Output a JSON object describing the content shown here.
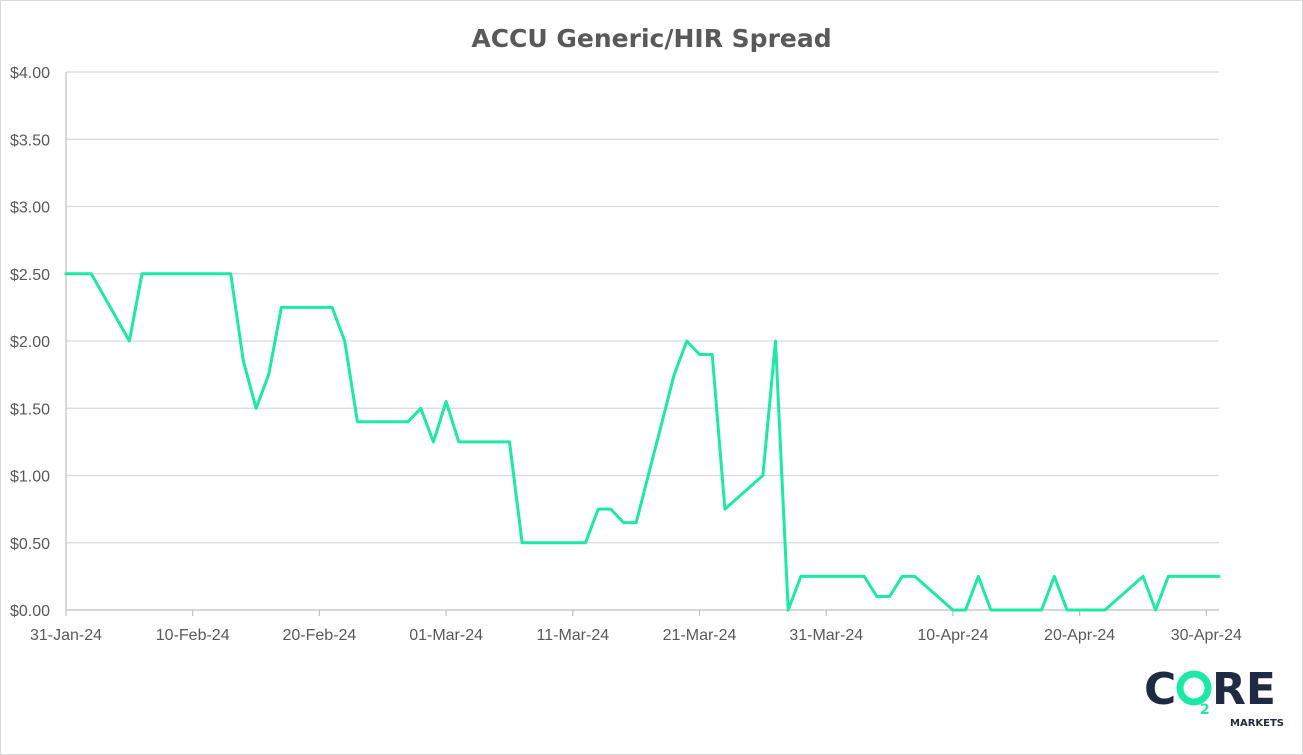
{
  "chart_data": {
    "type": "line",
    "title": "ACCU Generic/HIR Spread",
    "xlabel": "",
    "ylabel": "",
    "ylim": [
      0,
      4
    ],
    "yticks": [
      "$0.00",
      "$0.50",
      "$1.00",
      "$1.50",
      "$2.00",
      "$2.50",
      "$3.00",
      "$3.50",
      "$4.00"
    ],
    "xlim": [
      "2024-01-31",
      "2024-05-01"
    ],
    "xticks": [
      "31-Jan-24",
      "10-Feb-24",
      "20-Feb-24",
      "01-Mar-24",
      "11-Mar-24",
      "21-Mar-24",
      "31-Mar-24",
      "10-Apr-24",
      "20-Apr-24",
      "30-Apr-24"
    ],
    "xtick_dates": [
      "2024-01-31",
      "2024-02-10",
      "2024-02-20",
      "2024-03-01",
      "2024-03-11",
      "2024-03-21",
      "2024-03-31",
      "2024-04-10",
      "2024-04-20",
      "2024-04-30"
    ],
    "grid": true,
    "legend": "none",
    "series": [
      {
        "color": "#1de9a6",
        "points": [
          [
            "2024-01-31",
            2.5
          ],
          [
            "2024-02-01",
            2.5
          ],
          [
            "2024-02-02",
            2.5
          ],
          [
            "2024-02-05",
            2.0
          ],
          [
            "2024-02-06",
            2.5
          ],
          [
            "2024-02-07",
            2.5
          ],
          [
            "2024-02-08",
            2.5
          ],
          [
            "2024-02-09",
            2.5
          ],
          [
            "2024-02-12",
            2.5
          ],
          [
            "2024-02-13",
            2.5
          ],
          [
            "2024-02-14",
            1.85
          ],
          [
            "2024-02-15",
            1.5
          ],
          [
            "2024-02-16",
            1.75
          ],
          [
            "2024-02-17",
            2.25
          ],
          [
            "2024-02-19",
            2.25
          ],
          [
            "2024-02-20",
            2.25
          ],
          [
            "2024-02-21",
            2.25
          ],
          [
            "2024-02-22",
            2.0
          ],
          [
            "2024-02-23",
            1.4
          ],
          [
            "2024-02-26",
            1.4
          ],
          [
            "2024-02-27",
            1.4
          ],
          [
            "2024-02-28",
            1.5
          ],
          [
            "2024-02-29",
            1.25
          ],
          [
            "2024-03-01",
            1.55
          ],
          [
            "2024-03-02",
            1.25
          ],
          [
            "2024-03-05",
            1.25
          ],
          [
            "2024-03-06",
            1.25
          ],
          [
            "2024-03-07",
            0.5
          ],
          [
            "2024-03-08",
            0.5
          ],
          [
            "2024-03-11",
            0.5
          ],
          [
            "2024-03-12",
            0.5
          ],
          [
            "2024-03-13",
            0.75
          ],
          [
            "2024-03-14",
            0.75
          ],
          [
            "2024-03-15",
            0.65
          ],
          [
            "2024-03-16",
            0.65
          ],
          [
            "2024-03-19",
            1.75
          ],
          [
            "2024-03-20",
            2.0
          ],
          [
            "2024-03-21",
            1.9
          ],
          [
            "2024-03-22",
            1.9
          ],
          [
            "2024-03-23",
            0.75
          ],
          [
            "2024-03-26",
            1.0
          ],
          [
            "2024-03-27",
            2.0
          ],
          [
            "2024-03-28",
            0.0
          ],
          [
            "2024-03-29",
            0.25
          ],
          [
            "2024-04-01",
            0.25
          ],
          [
            "2024-04-02",
            0.25
          ],
          [
            "2024-04-03",
            0.25
          ],
          [
            "2024-04-04",
            0.1
          ],
          [
            "2024-04-05",
            0.1
          ],
          [
            "2024-04-06",
            0.25
          ],
          [
            "2024-04-07",
            0.25
          ],
          [
            "2024-04-10",
            0.0
          ],
          [
            "2024-04-11",
            0.0
          ],
          [
            "2024-04-12",
            0.25
          ],
          [
            "2024-04-13",
            0.0
          ],
          [
            "2024-04-16",
            0.0
          ],
          [
            "2024-04-17",
            0.0
          ],
          [
            "2024-04-18",
            0.25
          ],
          [
            "2024-04-19",
            0.0
          ],
          [
            "2024-04-22",
            0.0
          ],
          [
            "2024-04-25",
            0.25
          ],
          [
            "2024-04-26",
            0.0
          ],
          [
            "2024-04-27",
            0.25
          ],
          [
            "2024-05-01",
            0.25
          ]
        ]
      }
    ]
  },
  "logo": {
    "text_left": "C",
    "text_right": "RE",
    "subscript": "2",
    "tagline": "MARKETS",
    "colors": {
      "dark": "#1f2a44",
      "accent": "#1de9a6"
    }
  }
}
